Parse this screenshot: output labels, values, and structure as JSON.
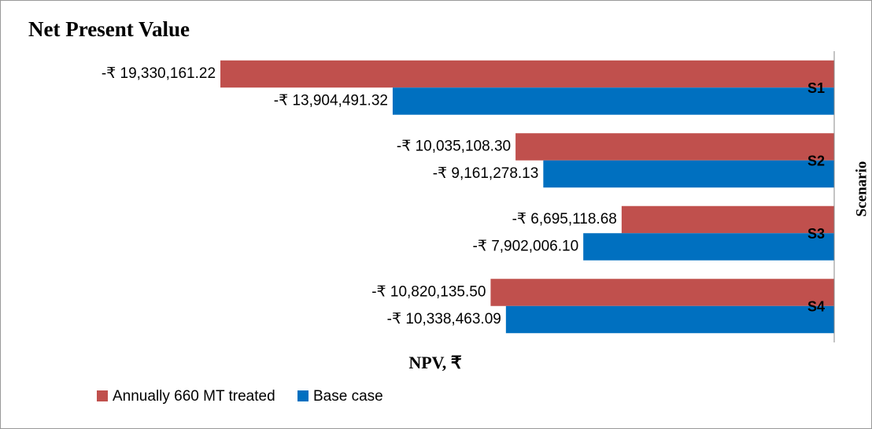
{
  "chart_data": {
    "type": "bar",
    "horizontal": true,
    "title": "Net Present Value",
    "x_label": "NPV, ₹",
    "y_label": "Scenario",
    "categories": [
      "S1",
      "S2",
      "S3",
      "S4"
    ],
    "series": [
      {
        "name": "Annually 660 MT treated",
        "color": "#c0504d",
        "values": [
          -19330161.22,
          -10035108.3,
          -6695118.68,
          -10820135.5
        ],
        "value_labels": [
          "-₹ 19,330,161.22",
          "-₹ 10,035,108.30",
          "-₹ 6,695,118.68",
          "-₹ 10,820,135.50"
        ]
      },
      {
        "name": "Base case",
        "color": "#0070c0",
        "values": [
          -13904491.32,
          -9161278.13,
          -7902006.1,
          -10338463.09
        ],
        "value_labels": [
          "-₹ 13,904,491.32",
          "-₹ 9,161,278.13",
          "-₹ 7,902,006.10",
          "-₹ 10,338,463.09"
        ]
      }
    ],
    "xlim": [
      -20000000,
      0
    ],
    "legend": "bottom"
  }
}
